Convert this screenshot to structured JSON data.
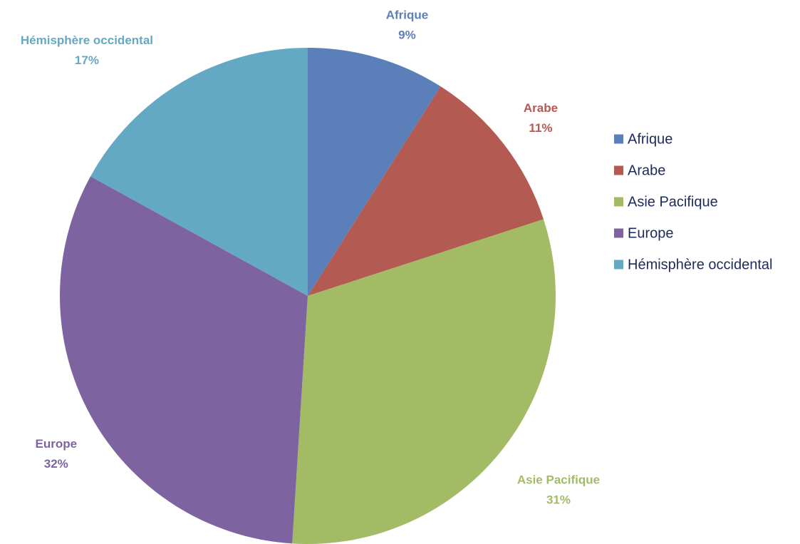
{
  "chart_data": {
    "type": "pie",
    "categories": [
      "Afrique",
      "Arabe",
      "Asie Pacifique",
      "Europe",
      "Hémisphère occidental"
    ],
    "values": [
      9,
      11,
      31,
      32,
      17
    ],
    "value_labels": [
      "9%",
      "11%",
      "31%",
      "32%",
      "17%"
    ],
    "colors": [
      "#5b7fb8",
      "#b35a52",
      "#a3bb65",
      "#7d64a0",
      "#63a9c4"
    ],
    "legend": "right"
  }
}
